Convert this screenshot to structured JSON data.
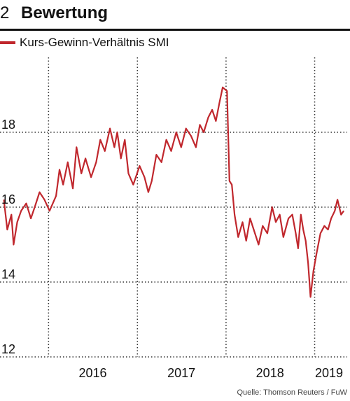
{
  "header": {
    "number": "2",
    "title": "Bewertung"
  },
  "source": "Quelle: Thomson Reuters / FuW",
  "colors": {
    "series": "#c0272d",
    "text": "#111111",
    "grid": "#333333"
  },
  "chart_data": {
    "type": "line",
    "title": "Bewertung",
    "xlabel": "",
    "ylabel": "",
    "legend": "top-left",
    "grid": true,
    "ylim": [
      12,
      20
    ],
    "xlim": [
      "2015-06-15",
      "2019-05-15"
    ],
    "y_ticks": [
      12,
      14,
      16,
      18
    ],
    "x_gridlines": [
      "2016-01-01",
      "2017-01-01",
      "2018-01-01",
      "2019-01-01"
    ],
    "x_tick_labels": [
      {
        "label": "2016",
        "date": "2016-07-01"
      },
      {
        "label": "2017",
        "date": "2017-07-01"
      },
      {
        "label": "2018",
        "date": "2018-07-01"
      },
      {
        "label": "2019",
        "date": "2019-03-01"
      }
    ],
    "series": [
      {
        "name": "Kurs-Gewinn-Verhältnis SMI",
        "x": [
          "2015-07-01",
          "2015-07-15",
          "2015-08-01",
          "2015-08-10",
          "2015-08-25",
          "2015-09-10",
          "2015-10-01",
          "2015-10-20",
          "2015-11-05",
          "2015-11-25",
          "2015-12-15",
          "2016-01-05",
          "2016-02-01",
          "2016-02-15",
          "2016-03-01",
          "2016-03-20",
          "2016-04-10",
          "2016-04-25",
          "2016-05-15",
          "2016-06-01",
          "2016-06-24",
          "2016-07-15",
          "2016-08-01",
          "2016-08-20",
          "2016-09-10",
          "2016-09-28",
          "2016-10-10",
          "2016-10-25",
          "2016-11-10",
          "2016-11-25",
          "2016-12-15",
          "2017-01-10",
          "2017-01-30",
          "2017-02-15",
          "2017-03-01",
          "2017-03-20",
          "2017-04-10",
          "2017-04-30",
          "2017-05-20",
          "2017-06-10",
          "2017-06-30",
          "2017-07-20",
          "2017-08-10",
          "2017-08-30",
          "2017-09-15",
          "2017-10-01",
          "2017-10-20",
          "2017-11-05",
          "2017-11-20",
          "2017-12-05",
          "2017-12-18",
          "2018-01-05",
          "2018-01-15",
          "2018-01-25",
          "2018-02-05",
          "2018-02-20",
          "2018-03-10",
          "2018-03-25",
          "2018-04-10",
          "2018-04-25",
          "2018-05-15",
          "2018-06-01",
          "2018-06-20",
          "2018-07-10",
          "2018-07-25",
          "2018-08-10",
          "2018-08-25",
          "2018-09-15",
          "2018-10-01",
          "2018-10-15",
          "2018-10-25",
          "2018-11-05",
          "2018-11-15",
          "2018-11-25",
          "2018-12-05",
          "2018-12-15",
          "2018-12-27",
          "2019-01-10",
          "2019-01-25",
          "2019-02-10",
          "2019-02-25",
          "2019-03-10",
          "2019-03-25",
          "2019-04-05",
          "2019-04-20",
          "2019-05-01"
        ],
        "values": [
          16.2,
          15.4,
          15.8,
          15.0,
          15.6,
          15.9,
          16.1,
          15.7,
          16.0,
          16.4,
          16.2,
          15.9,
          16.3,
          17.0,
          16.6,
          17.2,
          16.5,
          17.6,
          16.9,
          17.3,
          16.8,
          17.2,
          17.8,
          17.5,
          18.1,
          17.6,
          18.0,
          17.3,
          17.8,
          16.9,
          16.6,
          17.1,
          16.8,
          16.4,
          16.7,
          17.4,
          17.2,
          17.8,
          17.5,
          18.0,
          17.6,
          18.1,
          17.9,
          17.6,
          18.2,
          18.0,
          18.4,
          18.6,
          18.3,
          18.8,
          19.2,
          19.1,
          16.7,
          16.6,
          15.8,
          15.2,
          15.6,
          15.1,
          15.7,
          15.4,
          15.0,
          15.5,
          15.3,
          16.0,
          15.6,
          15.8,
          15.2,
          15.7,
          15.8,
          15.3,
          14.9,
          15.8,
          15.4,
          15.1,
          14.5,
          13.6,
          14.3,
          14.8,
          15.3,
          15.5,
          15.4,
          15.7,
          15.9,
          16.2,
          15.8,
          15.9
        ]
      }
    ]
  }
}
